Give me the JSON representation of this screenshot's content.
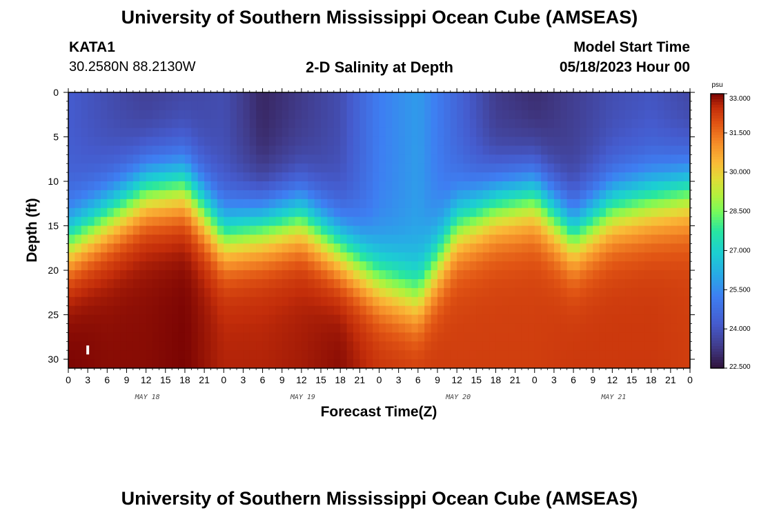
{
  "header": {
    "title": "University of Southern Mississippi Ocean Cube (AMSEAS)",
    "station_id": "KATA1",
    "coordinates": "30.2580N  88.2130W",
    "plot_name": "2-D Salinity at Depth",
    "model_start_label": "Model Start Time",
    "model_start_value": "05/18/2023 Hour 00"
  },
  "footer": {
    "title": "University of Southern Mississippi Ocean Cube (AMSEAS)"
  },
  "chart_data": {
    "type": "heatmap",
    "title": "2-D Salinity at Depth",
    "xlabel": "Forecast Time(Z)",
    "ylabel": "Depth (ft)",
    "x_range_hours": [
      0,
      96
    ],
    "x_tick_labels": [
      "0",
      "3",
      "6",
      "9",
      "12",
      "15",
      "18",
      "21",
      "0",
      "3",
      "6",
      "9",
      "12",
      "15",
      "18",
      "21",
      "0",
      "3",
      "6",
      "9",
      "12",
      "15",
      "18",
      "21",
      "0",
      "3",
      "6",
      "9",
      "12",
      "15",
      "18",
      "21",
      "0"
    ],
    "day_labels": [
      "MAY 18",
      "MAY 19",
      "MAY 20",
      "MAY 21"
    ],
    "ylim": [
      0,
      31
    ],
    "y_ticks": [
      0,
      5,
      10,
      15,
      20,
      25,
      30
    ],
    "colorbar": {
      "unit": "psu",
      "range": [
        22.5,
        33.0
      ],
      "tick_values": [
        22.5,
        24.0,
        25.5,
        27.0,
        28.5,
        30.0,
        31.5,
        33.0
      ],
      "tick_labels": [
        "22.500",
        "24.000",
        "25.500",
        "27.000",
        "28.500",
        "30.000",
        "31.500",
        "33.000"
      ]
    },
    "halocline_depth_ft": {
      "hours": [
        0,
        6,
        12,
        18,
        24,
        30,
        36,
        42,
        48,
        54,
        60,
        66,
        72,
        78,
        84,
        90,
        96
      ],
      "values": [
        17,
        14,
        11,
        10.5,
        16,
        15,
        14,
        17.5,
        21,
        23,
        15,
        12.5,
        11.5,
        16,
        13,
        12,
        11
      ]
    },
    "surface_salinity_psu": {
      "hours": [
        0,
        6,
        12,
        18,
        24,
        30,
        36,
        42,
        48,
        54,
        60,
        66,
        72,
        78,
        84,
        90,
        96
      ],
      "values": [
        24.2,
        23.8,
        23.4,
        23.6,
        23.8,
        22.9,
        23.3,
        23.8,
        25.2,
        25.8,
        24.5,
        23.3,
        23.0,
        23.4,
        23.8,
        24.0,
        23.6
      ]
    },
    "bottom_salinity_psu": {
      "hours": [
        0,
        6,
        12,
        18,
        24,
        30,
        36,
        42,
        48,
        54,
        60,
        66,
        72,
        78,
        84,
        90,
        96
      ],
      "values": [
        33.0,
        32.9,
        32.9,
        33.0,
        32.6,
        32.6,
        32.7,
        32.9,
        32.4,
        32.3,
        32.2,
        32.2,
        32.2,
        32.3,
        32.3,
        32.3,
        32.2
      ]
    },
    "annotation_marker": {
      "hour": 3,
      "depth_ft": 29
    }
  }
}
